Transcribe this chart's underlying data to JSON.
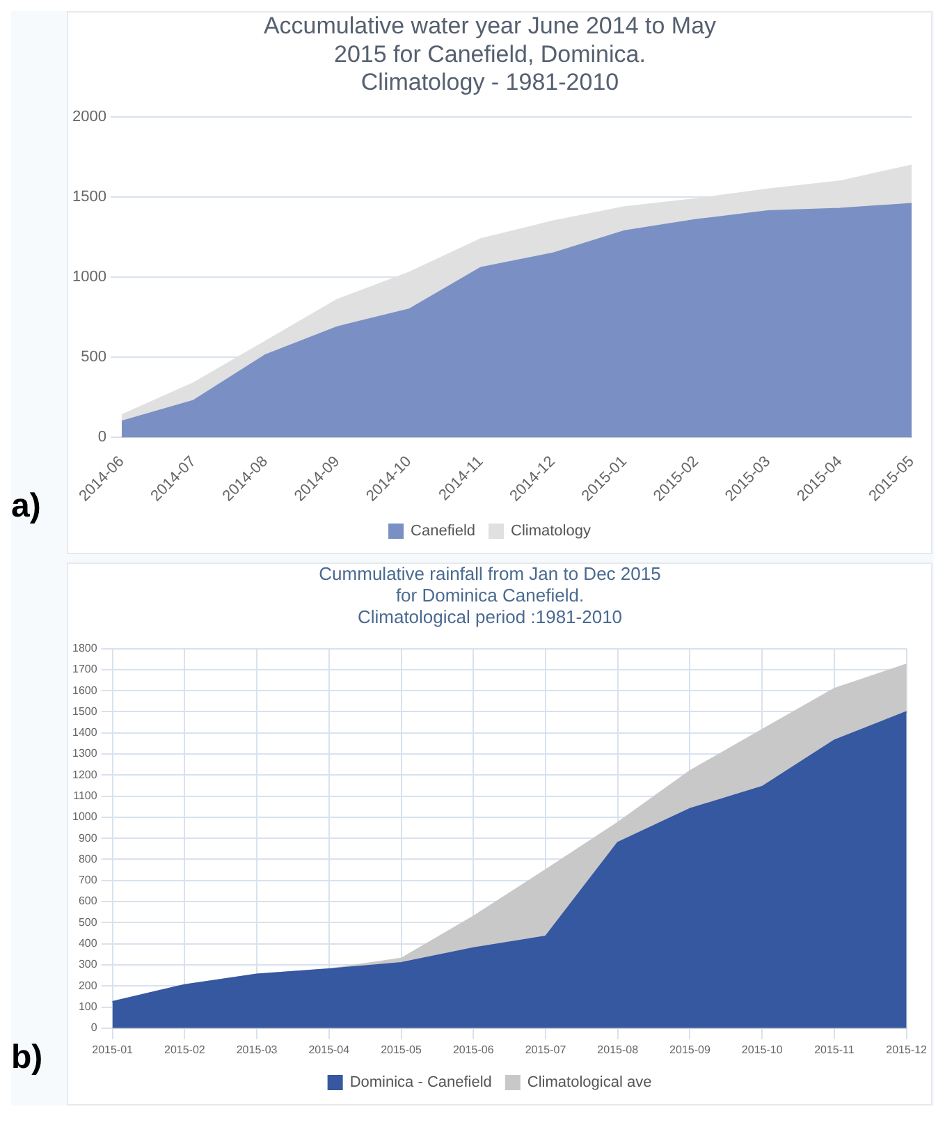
{
  "chart_data": [
    {
      "type": "area",
      "title": "Accumulative water year June 2014 to May\n2015 for Canefield, Dominica.\nClimatology - 1981-2010",
      "categories": [
        "2014-06",
        "2014-07",
        "2014-08",
        "2014-09",
        "2014-10",
        "2014-11",
        "2014-12",
        "2015-01",
        "2015-02",
        "2015-03",
        "2015-04",
        "2015-05"
      ],
      "series": [
        {
          "name": "Canefield",
          "color": "#7a90c4",
          "values": [
            100,
            230,
            515,
            690,
            800,
            1060,
            1150,
            1290,
            1360,
            1415,
            1430,
            1460
          ]
        },
        {
          "name": "Climatology",
          "color": "#e0e0e0",
          "values": [
            140,
            340,
            600,
            860,
            1030,
            1240,
            1350,
            1440,
            1490,
            1550,
            1600,
            1700
          ]
        }
      ],
      "ylim": [
        0,
        2000
      ],
      "yticks": [
        0,
        500,
        1000,
        1500,
        2000
      ],
      "grid": "y",
      "legend": "bottom",
      "annotations": [
        "a)"
      ]
    },
    {
      "type": "area",
      "title": "Cummulative rainfall from Jan to Dec 2015\nfor Dominica Canefield.\nClimatological period :1981-2010",
      "categories": [
        "2015-01",
        "2015-02",
        "2015-03",
        "2015-04",
        "2015-05",
        "2015-06",
        "2015-07",
        "2015-08",
        "2015-09",
        "2015-10",
        "2015-11",
        "2015-12"
      ],
      "series": [
        {
          "name": "Dominica - Canefield",
          "color": "#3558a0",
          "values": [
            125,
            205,
            255,
            280,
            310,
            380,
            435,
            880,
            1040,
            1145,
            1365,
            1500
          ]
        },
        {
          "name": "Climatological ave",
          "color": "#c8c8c8",
          "values": [
            125,
            205,
            255,
            280,
            330,
            530,
            750,
            975,
            1220,
            1415,
            1610,
            1725
          ]
        }
      ],
      "ylim": [
        0,
        1800
      ],
      "yticks": [
        0,
        100,
        200,
        300,
        400,
        500,
        600,
        700,
        800,
        900,
        1000,
        1100,
        1200,
        1300,
        1400,
        1500,
        1600,
        1700,
        1800
      ],
      "grid": true,
      "legend": "bottom",
      "annotations": [
        "b)"
      ]
    }
  ]
}
